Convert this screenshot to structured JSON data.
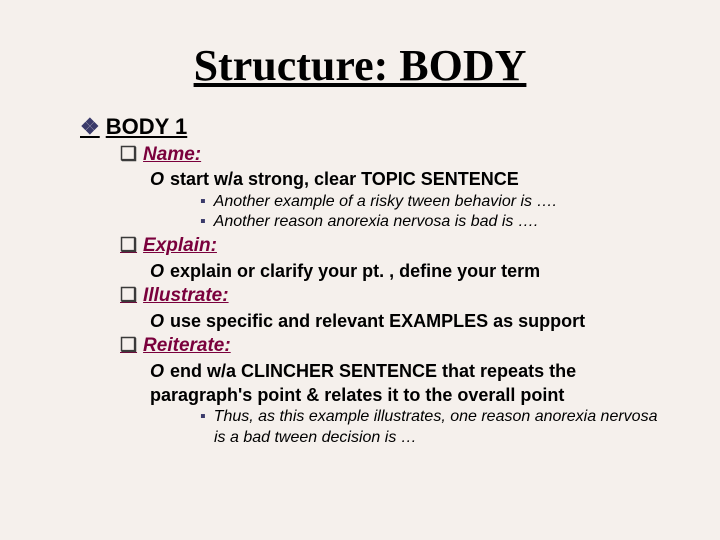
{
  "colors": {
    "background": "#f5f0ec",
    "text": "#000000",
    "accent_red": "#7a003c",
    "bullet_dark": "#3a3a6a"
  },
  "typography": {
    "title_font": "Times New Roman",
    "body_font": "Arial",
    "title_size_pt": 44,
    "l1_size_pt": 22,
    "l2_size_pt": 19,
    "l3_size_pt": 18,
    "l4_size_pt": 16
  },
  "bullets": {
    "l1_marker": "❖",
    "l2_marker": "❑",
    "l3_marker": "O",
    "l4_marker": "▪"
  },
  "title": "Structure: BODY",
  "body1_heading": "BODY 1",
  "items": {
    "name": {
      "label": "Name:",
      "desc": "start w/a strong, clear TOPIC SENTENCE",
      "ex1": "Another example of a risky tween behavior is ….",
      "ex2": "Another reason anorexia nervosa is bad is …."
    },
    "explain": {
      "label": "Explain:",
      "desc": "explain or clarify your pt. , define your term"
    },
    "illustrate": {
      "label": "Illustrate:",
      "desc": "use specific and relevant EXAMPLES as support"
    },
    "reiterate": {
      "label": "Reiterate:",
      "desc": "end w/a CLINCHER SENTENCE that repeats the paragraph's point & relates it to the overall point",
      "ex1": "Thus, as this example illustrates, one reason anorexia nervosa is a bad tween decision is …"
    }
  }
}
